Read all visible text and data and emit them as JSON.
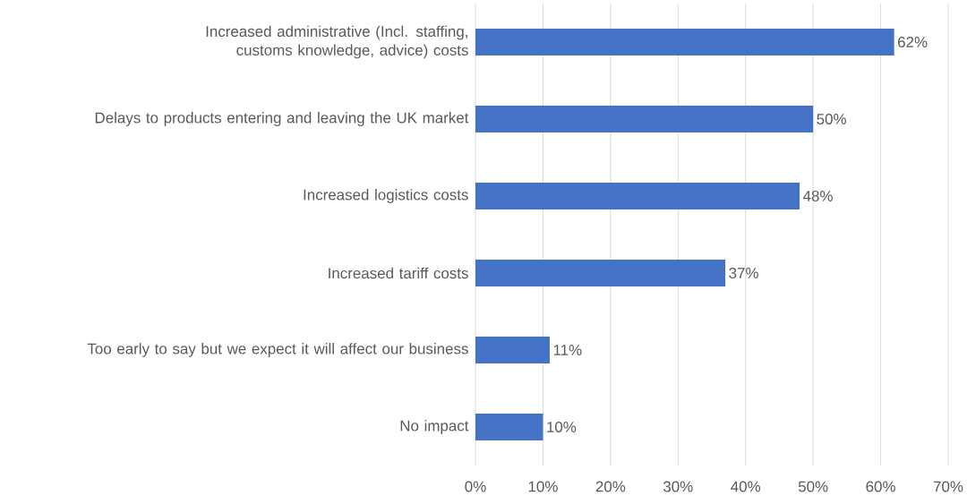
{
  "chart_data": {
    "type": "bar",
    "orientation": "horizontal",
    "categories": [
      "Increased administrative (Incl. staffing, customs knowledge, advice) costs",
      "Delays to products entering and leaving the UK market",
      "Increased logistics costs",
      "Increased tariff costs",
      "Too early to say but we expect it will affect our business",
      "No impact"
    ],
    "values": [
      62,
      50,
      48,
      37,
      11,
      10
    ],
    "value_labels": [
      "62%",
      "50%",
      "48%",
      "37%",
      "11%",
      "10%"
    ],
    "color": "#4472c4",
    "xlim": [
      0,
      70
    ],
    "xticks": [
      {
        "value": 0,
        "label": "0%"
      },
      {
        "value": 10,
        "label": "10%"
      },
      {
        "value": 20,
        "label": "20%"
      },
      {
        "value": 30,
        "label": "30%"
      },
      {
        "value": 40,
        "label": "40%"
      },
      {
        "value": 50,
        "label": "50%"
      },
      {
        "value": 60,
        "label": "60%"
      },
      {
        "value": 70,
        "label": "70%"
      }
    ],
    "grid": "x"
  }
}
